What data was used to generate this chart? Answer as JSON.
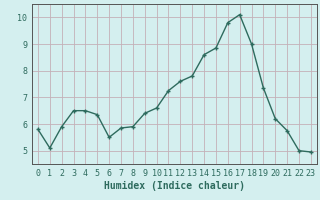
{
  "x": [
    0,
    1,
    2,
    3,
    4,
    5,
    6,
    7,
    8,
    9,
    10,
    11,
    12,
    13,
    14,
    15,
    16,
    17,
    18,
    19,
    20,
    21,
    22,
    23
  ],
  "y": [
    5.8,
    5.1,
    5.9,
    6.5,
    6.5,
    6.35,
    5.5,
    5.85,
    5.9,
    6.4,
    6.6,
    7.25,
    7.6,
    7.8,
    8.6,
    8.85,
    9.8,
    10.1,
    9.0,
    7.35,
    6.2,
    5.75,
    5.0,
    4.95
  ],
  "xlabel": "Humidex (Indice chaleur)",
  "xlim": [
    -0.5,
    23.5
  ],
  "ylim": [
    4.5,
    10.5
  ],
  "yticks": [
    5,
    6,
    7,
    8,
    9,
    10
  ],
  "xticks": [
    0,
    1,
    2,
    3,
    4,
    5,
    6,
    7,
    8,
    9,
    10,
    11,
    12,
    13,
    14,
    15,
    16,
    17,
    18,
    19,
    20,
    21,
    22,
    23
  ],
  "line_color": "#2e6b5e",
  "marker_color": "#2e6b5e",
  "bg_color": "#d4efef",
  "grid_color": "#c4b0b8",
  "axis_color": "#555555",
  "tick_label_color": "#2e6b5e",
  "xlabel_color": "#2e6b5e",
  "xlabel_fontsize": 7,
  "tick_fontsize": 6,
  "line_width": 1.0,
  "marker_size": 2.5
}
